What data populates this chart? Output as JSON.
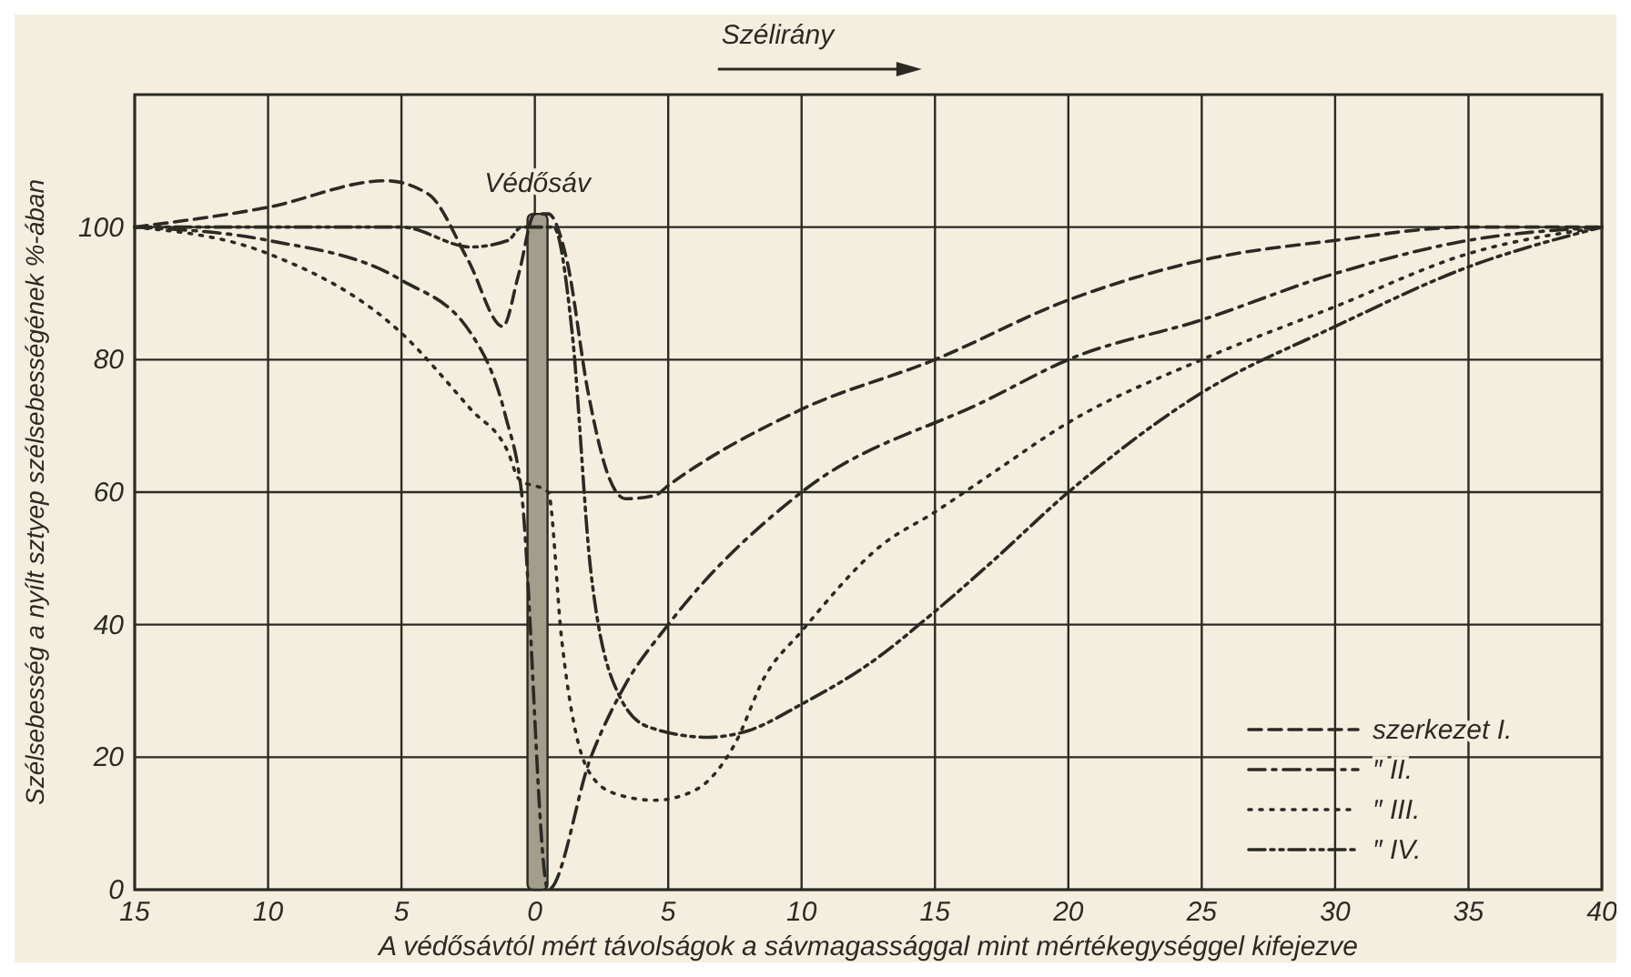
{
  "chart_data": {
    "type": "line",
    "xlabel": "A védősávtól mért távolságok a sávmagassággal mint mértékegységgel kifejezve",
    "ylabel": "Szélsebesség a nyílt sztyep szélsebességének %-ában",
    "annotations": [
      "Szélirány"
    ],
    "xlim": [
      -15,
      40
    ],
    "xticks": [
      {
        "value": -15,
        "label": "15"
      },
      {
        "value": -10,
        "label": "10"
      },
      {
        "value": -5,
        "label": "5"
      },
      0,
      5,
      10,
      15,
      20,
      25,
      30,
      35,
      40
    ],
    "ylim": [
      0,
      120
    ],
    "yticks": [
      0,
      20,
      40,
      60,
      80,
      100
    ],
    "grid": true,
    "legend": "bottom right",
    "marker": "none",
    "series": [
      {
        "name": "Védősáv",
        "type": "bar",
        "color": "#a39d8c",
        "x": [
          0.1
        ],
        "values": [
          102
        ]
      },
      {
        "name": "szerkezet I.",
        "color": "#2b2a22",
        "line_style": "dashed",
        "x": [
          -15,
          -10,
          -5.6,
          -4,
          -2.5,
          -1.2,
          -0.6,
          0,
          0.5,
          1.2,
          2,
          2.8,
          3.4,
          4.5,
          5,
          10,
          15,
          20,
          25,
          30,
          35,
          40
        ],
        "values": [
          100,
          103,
          107,
          105,
          95,
          85,
          93,
          102,
          102,
          95,
          75,
          62,
          59,
          59.5,
          61,
          72.5,
          80,
          89,
          95,
          98,
          100,
          100
        ]
      },
      {
        "name": "″ II.",
        "color": "#2b2a22",
        "line_style": "dashdot",
        "x": [
          -15,
          -10,
          -5,
          -2.4,
          -1.1,
          -0.5,
          0.5,
          2.1,
          3.4,
          5,
          10,
          17,
          20,
          25,
          30,
          35,
          40
        ],
        "values": [
          100,
          98,
          92,
          84,
          71.5,
          60,
          0,
          20,
          31,
          40,
          60,
          74,
          80,
          86,
          93,
          98,
          100
        ]
      },
      {
        "name": "″ III.",
        "color": "#2b2a22",
        "line_style": "dotted",
        "x": [
          -15,
          -10,
          -5,
          -2.4,
          -1,
          -0.6,
          0.5,
          1,
          2,
          3,
          4.5,
          6,
          7.5,
          8.6,
          10,
          13,
          15,
          17.2,
          20,
          25,
          30,
          35,
          40
        ],
        "values": [
          100,
          96,
          84,
          72.5,
          66,
          62,
          60,
          38,
          18,
          14.5,
          13.5,
          15,
          22,
          32,
          39,
          52,
          57,
          63,
          70.5,
          80,
          88,
          96,
          100
        ]
      },
      {
        "name": "″ IV.",
        "color": "#2b2a22",
        "line_style": "dashdotdot",
        "x": [
          -15,
          -10,
          -5,
          -2.4,
          -1,
          -0.5,
          0.7,
          1.4,
          2.1,
          3.2,
          4.3,
          6.5,
          8,
          10,
          12.5,
          15,
          17,
          20,
          25,
          30,
          35,
          40
        ],
        "values": [
          100,
          100,
          100,
          97,
          98,
          100,
          100,
          84,
          48,
          29,
          24.5,
          23,
          24,
          28,
          34,
          42,
          49,
          60,
          75,
          85,
          94,
          100
        ]
      }
    ]
  }
}
